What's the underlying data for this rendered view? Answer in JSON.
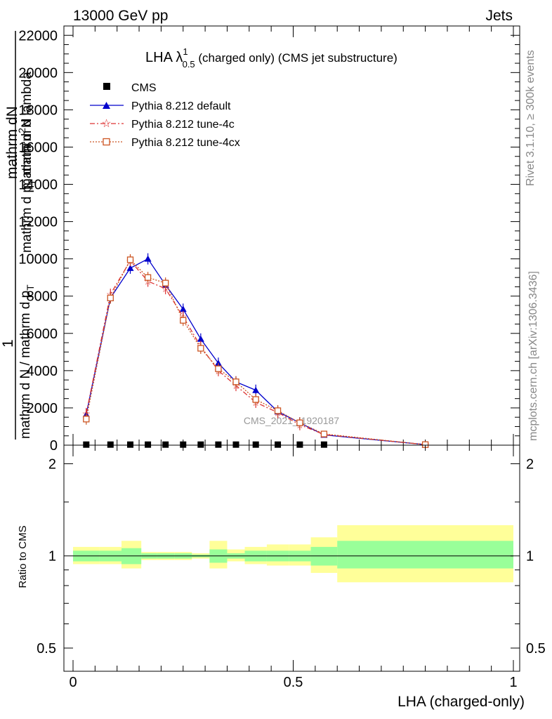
{
  "header": {
    "left": "13000 GeV pp",
    "right": "Jets"
  },
  "side_text": {
    "rivet": "Rivet 3.1.10, ≥ 300k events",
    "mcplots": "mcplots.cern.ch [arXiv:1306.3436]"
  },
  "watermark": "CMS_2021_I1920187",
  "title": {
    "main": "LHA λ",
    "sup": "1",
    "sub": "0.5",
    "rest": " (charged only) (CMS jet substructure)"
  },
  "y_axis": {
    "one": "1",
    "numerator": "mathrm d",
    "numerator_sup": "2",
    "numerator_end": "N",
    "denominator": "mathrm d p",
    "denominator_sub": "T",
    "denominator_end": " mathrm d lambda",
    "num2": "mathrm dN",
    "den2": "mathrm d N / mathrm d p",
    "den2_sub": "T"
  },
  "colors": {
    "cms": "#000000",
    "default": "#0000cc",
    "tune4c": "#dd3333",
    "tune4cx": "#cc5522",
    "band_inner": "#99ff99",
    "band_outer": "#ffff99"
  },
  "chart_data": [
    {
      "type": "line",
      "panel": "main",
      "xlim": [
        0,
        1
      ],
      "ylim": [
        0,
        22500
      ],
      "ytick_values": [
        0,
        2000,
        4000,
        6000,
        8000,
        10000,
        12000,
        14000,
        16000,
        18000,
        20000,
        22000
      ],
      "ytick_labels": [
        "0",
        "2000",
        "4000",
        "6000",
        "8000",
        "10000",
        "12000",
        "14000",
        "16000",
        "18000",
        "20000",
        "22000"
      ],
      "series": [
        {
          "name": "CMS",
          "marker": "square",
          "x": [
            0.03,
            0.085,
            0.13,
            0.17,
            0.21,
            0.25,
            0.29,
            0.33,
            0.37,
            0.415,
            0.465,
            0.515,
            0.57
          ],
          "values": [
            30,
            30,
            30,
            30,
            30,
            30,
            30,
            30,
            30,
            30,
            30,
            30,
            30
          ]
        },
        {
          "name": "Pythia 8.212 default",
          "marker": "triangle",
          "x": [
            0.03,
            0.085,
            0.13,
            0.17,
            0.21,
            0.25,
            0.29,
            0.33,
            0.37,
            0.415,
            0.465,
            0.515,
            0.57,
            0.8
          ],
          "values": [
            1650,
            7900,
            9500,
            10000,
            8600,
            7300,
            5700,
            4400,
            3400,
            2950,
            1800,
            1200,
            550,
            30
          ]
        },
        {
          "name": "Pythia 8.212 tune-4c",
          "marker": "star",
          "x": [
            0.03,
            0.085,
            0.13,
            0.17,
            0.21,
            0.25,
            0.29,
            0.33,
            0.37,
            0.415,
            0.465,
            0.515,
            0.57,
            0.8
          ],
          "values": [
            1700,
            8100,
            9900,
            8800,
            8400,
            6900,
            5300,
            4000,
            3200,
            2300,
            1750,
            1100,
            570,
            30
          ]
        },
        {
          "name": "Pythia 8.212 tune-4cx",
          "marker": "open-square",
          "x": [
            0.03,
            0.085,
            0.13,
            0.17,
            0.21,
            0.25,
            0.29,
            0.33,
            0.37,
            0.415,
            0.465,
            0.515,
            0.57,
            0.8
          ],
          "values": [
            1400,
            7900,
            9950,
            9000,
            8700,
            6700,
            5200,
            4100,
            3400,
            2450,
            1850,
            1200,
            600,
            30
          ]
        }
      ]
    },
    {
      "type": "area",
      "panel": "ratio",
      "ylabel": "Ratio to CMS",
      "xlabel": "LHA (charged-only)",
      "ylim": [
        0.42,
        2.3
      ],
      "yscale": "log",
      "ytick_values": [
        0.5,
        1,
        2
      ],
      "ytick_labels": [
        "0.5",
        "1",
        "2"
      ],
      "xtick_values": [
        0,
        0.5,
        1
      ],
      "xtick_labels": [
        "0",
        "0.5",
        "1"
      ],
      "bins": [
        0,
        0.06,
        0.11,
        0.155,
        0.19,
        0.23,
        0.27,
        0.31,
        0.35,
        0.39,
        0.44,
        0.49,
        0.54,
        0.6,
        1
      ],
      "inner_lo": [
        0.96,
        0.96,
        0.94,
        0.98,
        0.98,
        0.98,
        0.99,
        0.95,
        0.98,
        0.96,
        0.96,
        0.96,
        0.93,
        0.91
      ],
      "inner_hi": [
        1.04,
        1.04,
        1.06,
        1.02,
        1.02,
        1.02,
        1.01,
        1.05,
        1.02,
        1.04,
        1.04,
        1.04,
        1.07,
        1.12
      ],
      "outer_lo": [
        0.94,
        0.94,
        0.91,
        0.97,
        0.97,
        0.97,
        0.98,
        0.91,
        0.96,
        0.94,
        0.93,
        0.93,
        0.88,
        0.82
      ],
      "outer_hi": [
        1.07,
        1.07,
        1.12,
        1.03,
        1.03,
        1.03,
        1.02,
        1.12,
        1.05,
        1.07,
        1.09,
        1.09,
        1.15,
        1.26
      ]
    }
  ]
}
